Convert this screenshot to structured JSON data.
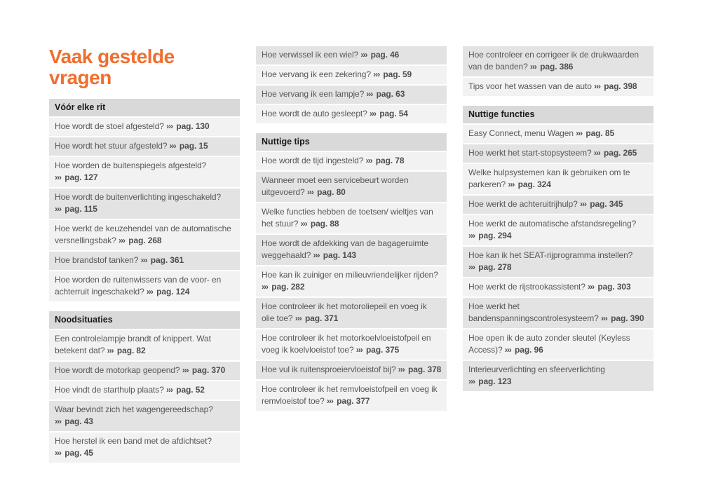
{
  "title": "Vaak gestelde vragen",
  "ref": {
    "arrows": "›››",
    "prefix": "pag."
  },
  "colors": {
    "accent": "#ef6e2e",
    "header_bg": "#d9d9d9",
    "header_text": "#1a1a1a",
    "row_light": "#f2f2f2",
    "row_dark": "#e3e3e3",
    "text": "#585858",
    "ref_text": "#4e4e4e",
    "page_background": "#ffffff"
  },
  "columns": [
    {
      "blocks": [
        {
          "type": "header",
          "label": "Vóór elke rit"
        },
        {
          "type": "item",
          "shade": "light",
          "q": "Hoe wordt de stoel afgesteld?",
          "page": "130"
        },
        {
          "type": "item",
          "shade": "dark",
          "q": "Hoe wordt het stuur afgesteld?",
          "page": "15"
        },
        {
          "type": "item",
          "shade": "light",
          "q": "Hoe worden de buitenspiegels afgesteld?",
          "page": "127"
        },
        {
          "type": "item",
          "shade": "dark",
          "q": "Hoe wordt de buitenverlichting ingeschakeld?",
          "page": "115"
        },
        {
          "type": "item",
          "shade": "light",
          "q": "Hoe werkt de keuzehendel van de automatische versnellingsbak?",
          "page": "268"
        },
        {
          "type": "item",
          "shade": "dark",
          "q": "Hoe brandstof tanken?",
          "page": "361"
        },
        {
          "type": "item",
          "shade": "light",
          "q": "Hoe worden de ruitenwissers van de voor- en achterruit ingeschakeld?",
          "page": "124"
        },
        {
          "type": "header",
          "label": "Noodsituaties"
        },
        {
          "type": "item",
          "shade": "light",
          "q": "Een controlelampje brandt of knippert. Wat betekent dat?",
          "page": "82"
        },
        {
          "type": "item",
          "shade": "dark",
          "q": "Hoe wordt de motorkap geopend?",
          "page": "370"
        },
        {
          "type": "item",
          "shade": "light",
          "q": "Hoe vindt de starthulp plaats?",
          "page": "52"
        },
        {
          "type": "item",
          "shade": "dark",
          "q": "Waar bevindt zich het wagengereedschap?",
          "page": "43"
        },
        {
          "type": "item",
          "shade": "light",
          "q": "Hoe herstel ik een band met de afdichtset?",
          "page": "45"
        }
      ]
    },
    {
      "blocks": [
        {
          "type": "item",
          "shade": "dark",
          "q": "Hoe verwissel ik een wiel?",
          "page": "46"
        },
        {
          "type": "item",
          "shade": "light",
          "q": "Hoe vervang ik een zekering?",
          "page": "59"
        },
        {
          "type": "item",
          "shade": "dark",
          "q": "Hoe vervang ik een lampje?",
          "page": "63"
        },
        {
          "type": "item",
          "shade": "light",
          "q": "Hoe wordt de auto gesleept?",
          "page": "54"
        },
        {
          "type": "header",
          "label": "Nuttige tips"
        },
        {
          "type": "item",
          "shade": "light",
          "q": "Hoe wordt de tijd ingesteld?",
          "page": "78"
        },
        {
          "type": "item",
          "shade": "dark",
          "q": "Wanneer moet een servicebeurt worden uitgevoerd?",
          "page": "80"
        },
        {
          "type": "item",
          "shade": "light",
          "q": "Welke functies hebben de toetsen/ wieltjes van het stuur?",
          "page": "88"
        },
        {
          "type": "item",
          "shade": "dark",
          "q": "Hoe wordt de afdekking van de bagageruimte weggehaald?",
          "page": "143"
        },
        {
          "type": "item",
          "shade": "light",
          "q": "Hoe kan ik zuiniger en milieuvriendelijker rijden?",
          "page": "282"
        },
        {
          "type": "item",
          "shade": "dark",
          "q": "Hoe controleer ik het motoroliepeil en voeg ik olie toe?",
          "page": "371"
        },
        {
          "type": "item",
          "shade": "light",
          "q": "Hoe controleer ik het motorkoelvloeistofpeil en voeg ik koelvloeistof toe?",
          "page": "375"
        },
        {
          "type": "item",
          "shade": "dark",
          "q": "Hoe vul ik ruitensproeiervloeistof bij?",
          "page": "378"
        },
        {
          "type": "item",
          "shade": "light",
          "q": "Hoe controleer ik het remvloeistofpeil en voeg ik remvloeistof toe?",
          "page": "377"
        }
      ]
    },
    {
      "blocks": [
        {
          "type": "item",
          "shade": "dark",
          "q": "Hoe controleer en corrigeer ik de drukwaarden van de banden?",
          "page": "386"
        },
        {
          "type": "item",
          "shade": "light",
          "q": "Tips voor het wassen van de auto",
          "page": "398"
        },
        {
          "type": "header",
          "label": "Nuttige functies"
        },
        {
          "type": "item",
          "shade": "light",
          "q": "Easy Connect, menu Wagen",
          "page": "85"
        },
        {
          "type": "item",
          "shade": "dark",
          "q": "Hoe werkt het start-stopsysteem?",
          "page": "265"
        },
        {
          "type": "item",
          "shade": "light",
          "q": "Welke hulpsystemen kan ik gebruiken om te parkeren?",
          "page": "324"
        },
        {
          "type": "item",
          "shade": "dark",
          "q": "Hoe werkt de achteruitrijhulp?",
          "page": "345"
        },
        {
          "type": "item",
          "shade": "light",
          "q": "Hoe werkt de automatische afstandsregeling?",
          "page": "294"
        },
        {
          "type": "item",
          "shade": "dark",
          "q": "Hoe kan ik het SEAT-rijprogramma instellen?",
          "page": "278"
        },
        {
          "type": "item",
          "shade": "light",
          "q": "Hoe werkt de rijstrookassistent?",
          "page": "303"
        },
        {
          "type": "item",
          "shade": "dark",
          "q": "Hoe werkt het bandenspanningscontrolesysteem?",
          "page": "390"
        },
        {
          "type": "item",
          "shade": "light",
          "q": "Hoe open ik de auto zonder sleutel (Keyless Access)?",
          "page": "96"
        },
        {
          "type": "item",
          "shade": "dark",
          "q": "Interieurverlichting en sfeerverlichting",
          "page": "123"
        }
      ]
    }
  ]
}
